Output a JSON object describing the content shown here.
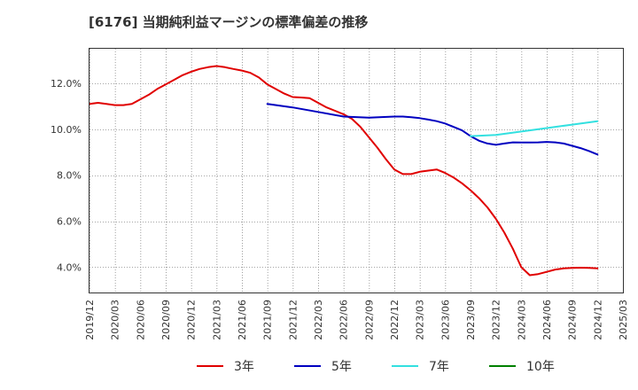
{
  "title": "[6176]  当期純利益マージンの標準偏差の推移",
  "chart_data": {
    "type": "line",
    "title": "[6176]  当期純利益マージンの標準偏差の推移",
    "x_ticks": [
      "2019/12",
      "2020/03",
      "2020/06",
      "2020/09",
      "2020/12",
      "2021/03",
      "2021/06",
      "2021/09",
      "2021/12",
      "2022/03",
      "2022/06",
      "2022/09",
      "2022/12",
      "2023/03",
      "2023/06",
      "2023/09",
      "2023/12",
      "2024/03",
      "2024/06",
      "2024/09",
      "2024/12",
      "2025/03"
    ],
    "y_ticks": [
      "4.0%",
      "6.0%",
      "8.0%",
      "10.0%",
      "12.0%"
    ],
    "y_tick_values": [
      4,
      6,
      8,
      10,
      12
    ],
    "ylim": [
      2.9,
      13.5
    ],
    "grid": true,
    "legend_position": "bottom",
    "series": [
      {
        "name": "3年",
        "color": "#e00000",
        "x": [
          "2019/12",
          "2020/01",
          "2020/02",
          "2020/03",
          "2020/04",
          "2020/05",
          "2020/06",
          "2020/07",
          "2020/08",
          "2020/09",
          "2020/10",
          "2020/11",
          "2020/12",
          "2021/01",
          "2021/02",
          "2021/03",
          "2021/04",
          "2021/05",
          "2021/06",
          "2021/07",
          "2021/08",
          "2021/09",
          "2021/10",
          "2021/11",
          "2021/12",
          "2022/01",
          "2022/02",
          "2022/03",
          "2022/04",
          "2022/05",
          "2022/06",
          "2022/07",
          "2022/08",
          "2022/09",
          "2022/10",
          "2022/11",
          "2022/12",
          "2023/01",
          "2023/02",
          "2023/03",
          "2023/04",
          "2023/05",
          "2023/06",
          "2023/07",
          "2023/08",
          "2023/09",
          "2023/10",
          "2023/11",
          "2023/12",
          "2024/01",
          "2024/02",
          "2024/03",
          "2024/04",
          "2024/05",
          "2024/06",
          "2024/07",
          "2024/08",
          "2024/09",
          "2024/10",
          "2024/11",
          "2024/12"
        ],
        "values": [
          11.1,
          11.15,
          11.1,
          11.05,
          11.05,
          11.1,
          11.3,
          11.5,
          11.75,
          11.95,
          12.15,
          12.35,
          12.5,
          12.62,
          12.7,
          12.75,
          12.7,
          12.62,
          12.55,
          12.45,
          12.25,
          11.95,
          11.75,
          11.55,
          11.4,
          11.38,
          11.35,
          11.15,
          10.95,
          10.8,
          10.65,
          10.45,
          10.1,
          9.65,
          9.2,
          8.7,
          8.25,
          8.05,
          8.05,
          8.15,
          8.2,
          8.25,
          8.1,
          7.9,
          7.65,
          7.35,
          7.0,
          6.6,
          6.1,
          5.5,
          4.8,
          4.0,
          3.65,
          3.7,
          3.8,
          3.9,
          3.95,
          3.97,
          3.98,
          3.97,
          3.95
        ]
      },
      {
        "name": "5年",
        "color": "#0000c0",
        "x": [
          "2021/09",
          "2021/12",
          "2022/03",
          "2022/06",
          "2022/09",
          "2022/12",
          "2023/01",
          "2023/02",
          "2023/03",
          "2023/04",
          "2023/05",
          "2023/06",
          "2023/07",
          "2023/08",
          "2023/09",
          "2023/10",
          "2023/11",
          "2023/12",
          "2024/01",
          "2024/02",
          "2024/03",
          "2024/04",
          "2024/05",
          "2024/06",
          "2024/07",
          "2024/08",
          "2024/09",
          "2024/10",
          "2024/11",
          "2024/12"
        ],
        "values": [
          11.1,
          10.95,
          10.75,
          10.55,
          10.5,
          10.55,
          10.55,
          10.52,
          10.48,
          10.42,
          10.35,
          10.25,
          10.1,
          9.95,
          9.7,
          9.5,
          9.38,
          9.32,
          9.38,
          9.43,
          9.42,
          9.42,
          9.43,
          9.45,
          9.43,
          9.38,
          9.28,
          9.18,
          9.05,
          8.9
        ]
      },
      {
        "name": "7年",
        "color": "#33e0e0",
        "x": [
          "2023/09",
          "2023/12",
          "2024/03",
          "2024/06",
          "2024/09",
          "2024/12"
        ],
        "values": [
          9.7,
          9.75,
          9.9,
          10.05,
          10.2,
          10.35
        ]
      },
      {
        "name": "10年",
        "color": "#008000",
        "x": [],
        "values": []
      }
    ]
  }
}
